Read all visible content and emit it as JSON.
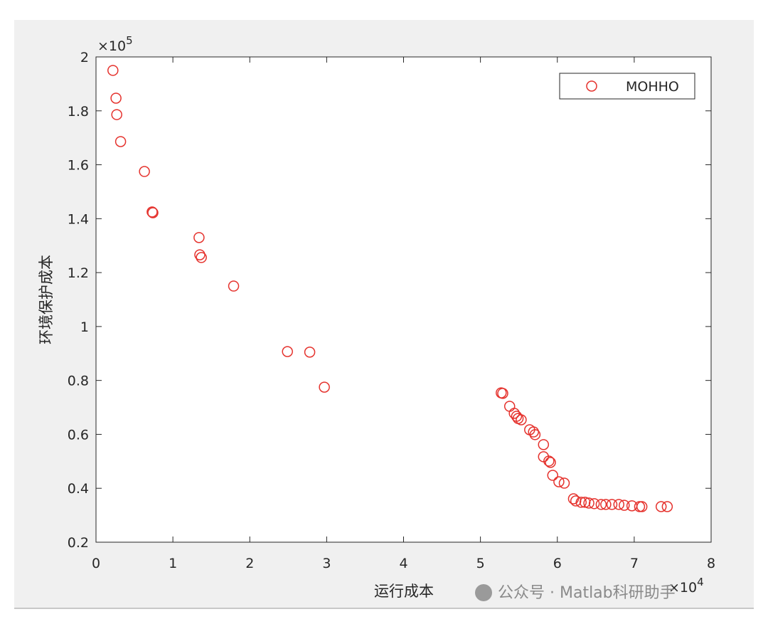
{
  "chart_data": {
    "type": "scatter",
    "xlabel": "运行成本",
    "ylabel": "环境保护成本",
    "x_multiplier": {
      "base": "×10",
      "exponent": "4"
    },
    "y_multiplier": {
      "base": "×10",
      "exponent": "5"
    },
    "xlim": [
      0,
      8
    ],
    "ylim": [
      0.2,
      2
    ],
    "xticks": [
      0,
      1,
      2,
      3,
      4,
      5,
      6,
      7,
      8
    ],
    "yticks": [
      0.2,
      0.4,
      0.6,
      0.8,
      1,
      1.2,
      1.4,
      1.6,
      1.8,
      2
    ],
    "legend": "upper right",
    "grid": false,
    "series": [
      {
        "name": "MOHHO",
        "color": "#e5322d",
        "x": [
          0.22,
          0.26,
          0.27,
          0.32,
          0.63,
          0.73,
          0.74,
          1.34,
          1.35,
          1.37,
          1.79,
          2.49,
          2.78,
          2.97,
          5.27,
          5.29,
          5.38,
          5.44,
          5.47,
          5.49,
          5.53,
          5.64,
          5.69,
          5.71,
          5.82,
          5.82,
          5.89,
          5.91,
          5.94,
          6.02,
          6.09,
          6.21,
          6.24,
          6.31,
          6.36,
          6.41,
          6.48,
          6.57,
          6.63,
          6.71,
          6.8,
          6.87,
          6.97,
          7.07,
          7.1,
          7.35,
          7.43
        ],
        "values": [
          1.95,
          1.847,
          1.786,
          1.686,
          1.575,
          1.425,
          1.422,
          1.33,
          1.266,
          1.256,
          1.15,
          0.907,
          0.905,
          0.775,
          0.754,
          0.752,
          0.704,
          0.678,
          0.667,
          0.659,
          0.654,
          0.617,
          0.609,
          0.599,
          0.562,
          0.517,
          0.501,
          0.496,
          0.448,
          0.424,
          0.419,
          0.361,
          0.353,
          0.348,
          0.348,
          0.345,
          0.343,
          0.34,
          0.34,
          0.34,
          0.34,
          0.337,
          0.335,
          0.332,
          0.332,
          0.332,
          0.332
        ]
      }
    ]
  },
  "watermark": "公众号 · Matlab科研助手"
}
